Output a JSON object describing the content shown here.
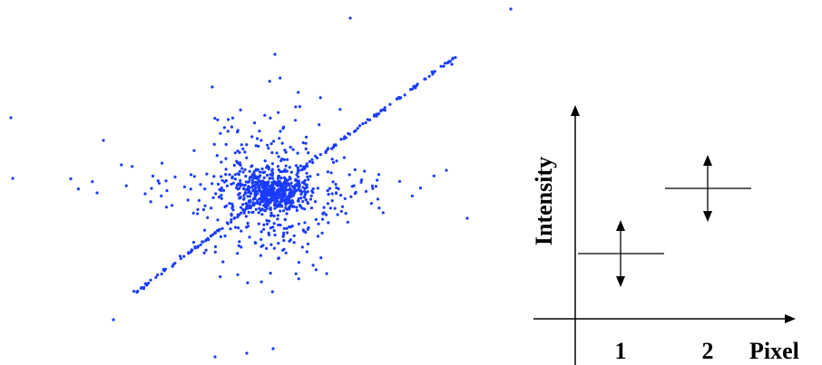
{
  "diagram": {
    "ylabel": "Intensity",
    "xlabel": "Pixel",
    "tick_labels": [
      "1",
      "2"
    ]
  },
  "colors": {
    "scatter": "#1a3cff",
    "ink": "#000000"
  }
}
